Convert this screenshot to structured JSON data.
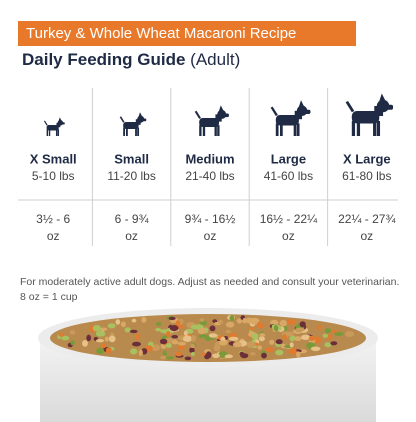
{
  "header": {
    "badge": "Turkey & Whole Wheat Macaroni Recipe",
    "title": "Daily Feeding Guide",
    "subtitle": "(Adult)"
  },
  "table": {
    "columns": [
      {
        "size": "X Small",
        "weight": "5-10 lbs",
        "amount": "3½ - 6",
        "unit": "oz"
      },
      {
        "size": "Small",
        "weight": "11-20 lbs",
        "amount": "6 - 9¾",
        "unit": "oz"
      },
      {
        "size": "Medium",
        "weight": "21-40 lbs",
        "amount": "9¾ - 16½",
        "unit": "oz"
      },
      {
        "size": "Large",
        "weight": "41-60 lbs",
        "amount": "16½ - 22¼",
        "unit": "oz"
      },
      {
        "size": "X Large",
        "weight": "61-80 lbs",
        "amount": "22¼ - 27¾",
        "unit": "oz"
      }
    ]
  },
  "footnote": {
    "line1": "For moderately active adult dogs. Adjust as needed and consult your veterinarian.",
    "line2": "8 oz = 1 cup"
  }
}
